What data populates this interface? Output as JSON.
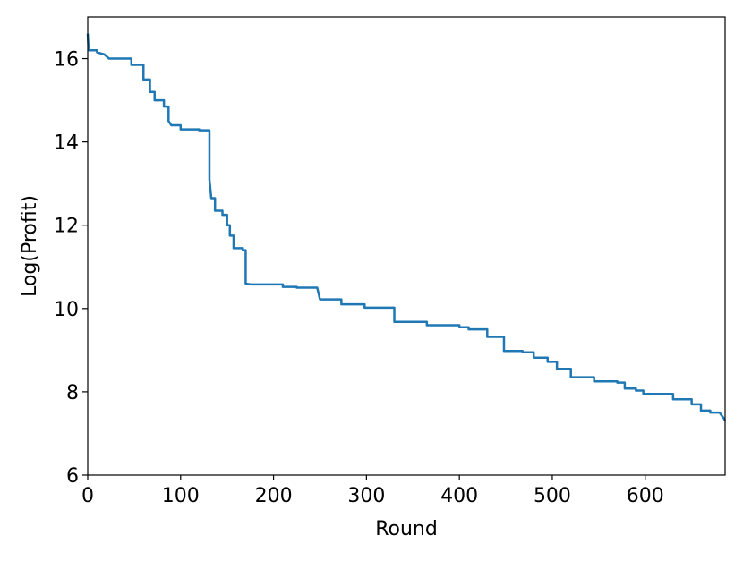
{
  "chart_data": {
    "type": "line",
    "xlabel": "Round",
    "ylabel": "Log(Profit)",
    "color": "#1f77b4",
    "x": [
      0,
      1,
      10,
      10,
      18,
      23,
      47,
      47,
      60,
      60,
      67,
      67,
      72,
      72,
      82,
      82,
      87,
      87,
      90,
      100,
      100,
      120,
      120,
      131,
      131,
      133,
      137,
      137,
      145,
      145,
      150,
      150,
      153,
      153,
      157,
      157,
      167,
      167,
      170,
      170,
      175,
      210,
      210,
      225,
      225,
      247,
      250,
      273,
      273,
      298,
      298,
      330,
      330,
      365,
      365,
      400,
      400,
      410,
      410,
      430,
      430,
      448,
      448,
      468,
      468,
      480,
      480,
      495,
      495,
      505,
      505,
      520,
      520,
      545,
      545,
      570,
      570,
      578,
      578,
      590,
      590,
      598,
      598,
      630,
      630,
      650,
      650,
      660,
      660,
      670,
      670,
      680,
      685,
      686
    ],
    "values": [
      16.6,
      16.2,
      16.2,
      16.15,
      16.1,
      16.0,
      16.0,
      15.85,
      15.85,
      15.5,
      15.5,
      15.2,
      15.2,
      15.0,
      15.0,
      14.85,
      14.85,
      14.5,
      14.4,
      14.4,
      14.3,
      14.3,
      14.28,
      14.28,
      13.1,
      12.65,
      12.65,
      12.35,
      12.35,
      12.25,
      12.25,
      12.0,
      12.0,
      11.75,
      11.75,
      11.45,
      11.45,
      11.4,
      11.4,
      10.6,
      10.58,
      10.58,
      10.52,
      10.52,
      10.5,
      10.5,
      10.22,
      10.22,
      10.1,
      10.1,
      10.02,
      10.02,
      9.68,
      9.68,
      9.6,
      9.6,
      9.55,
      9.55,
      9.5,
      9.5,
      9.32,
      9.32,
      8.98,
      8.98,
      8.95,
      8.95,
      8.82,
      8.82,
      8.72,
      8.72,
      8.55,
      8.55,
      8.35,
      8.35,
      8.25,
      8.25,
      8.22,
      8.22,
      8.08,
      8.08,
      8.03,
      8.03,
      7.95,
      7.95,
      7.82,
      7.82,
      7.7,
      7.7,
      7.55,
      7.55,
      7.5,
      7.5,
      7.35,
      7.3
    ],
    "xlim": [
      0,
      686
    ],
    "ylim": [
      6,
      17
    ],
    "xticks": [
      0,
      100,
      200,
      300,
      400,
      500,
      600
    ],
    "yticks": [
      6,
      8,
      10,
      12,
      14,
      16
    ]
  }
}
